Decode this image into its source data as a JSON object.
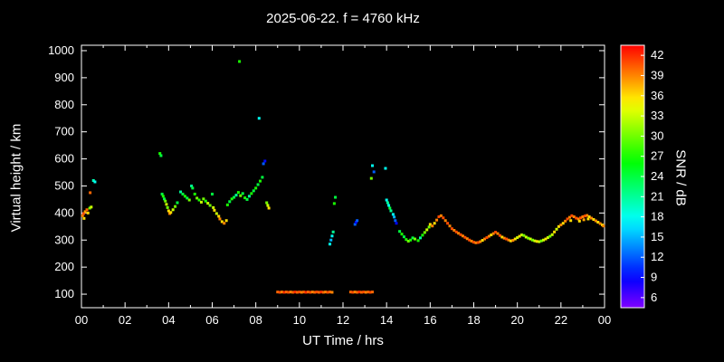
{
  "title": "2025-06-22. f = 4760 kHz",
  "colors": {
    "background": "#000000",
    "foreground": "#ffffff"
  },
  "chart_data": {
    "type": "scatter",
    "title": "2025-06-22. f = 4760 kHz",
    "xlabel": "UT Time / hrs",
    "ylabel": "Virtual height / km",
    "colorbar_label": "SNR / dB",
    "xlim": [
      0,
      24
    ],
    "ylim": [
      50,
      1020
    ],
    "x_tick_labels": [
      "00",
      "02",
      "04",
      "06",
      "08",
      "10",
      "12",
      "14",
      "16",
      "18",
      "20",
      "22",
      "00"
    ],
    "x_tick_values": [
      0,
      2,
      4,
      6,
      8,
      10,
      12,
      14,
      16,
      18,
      20,
      22,
      24
    ],
    "y_ticks": [
      100,
      200,
      300,
      400,
      500,
      600,
      700,
      800,
      900,
      1000
    ],
    "grid": false,
    "colorbar": {
      "min": 4.5,
      "max": 43.5,
      "ticks": [
        6,
        9,
        12,
        15,
        18,
        21,
        24,
        27,
        30,
        33,
        36,
        39,
        42
      ]
    },
    "points_format": [
      "ut_hours",
      "virtual_height_km",
      "snr_db"
    ],
    "points": [
      [
        0.05,
        390,
        39
      ],
      [
        0.1,
        398,
        41
      ],
      [
        0.12,
        380,
        36
      ],
      [
        0.17,
        405,
        38
      ],
      [
        0.25,
        412,
        40
      ],
      [
        0.3,
        400,
        36
      ],
      [
        0.38,
        418,
        30
      ],
      [
        0.4,
        475,
        40
      ],
      [
        0.45,
        422,
        33
      ],
      [
        0.55,
        520,
        20
      ],
      [
        0.62,
        515,
        18
      ],
      [
        3.6,
        620,
        27
      ],
      [
        3.65,
        612,
        24
      ],
      [
        3.7,
        470,
        24
      ],
      [
        3.75,
        462,
        27
      ],
      [
        3.8,
        452,
        24
      ],
      [
        3.85,
        444,
        30
      ],
      [
        3.9,
        432,
        33
      ],
      [
        3.95,
        420,
        30
      ],
      [
        4.0,
        408,
        36
      ],
      [
        4.05,
        398,
        39
      ],
      [
        4.1,
        402,
        36
      ],
      [
        4.2,
        412,
        33
      ],
      [
        4.3,
        424,
        30
      ],
      [
        4.4,
        438,
        24
      ],
      [
        4.55,
        478,
        21
      ],
      [
        4.65,
        470,
        24
      ],
      [
        4.75,
        462,
        27
      ],
      [
        4.85,
        455,
        24
      ],
      [
        4.95,
        448,
        30
      ],
      [
        5.05,
        500,
        21
      ],
      [
        5.1,
        492,
        24
      ],
      [
        5.2,
        470,
        27
      ],
      [
        5.3,
        455,
        30
      ],
      [
        5.4,
        448,
        27
      ],
      [
        5.5,
        440,
        33
      ],
      [
        5.6,
        452,
        30
      ],
      [
        5.7,
        444,
        27
      ],
      [
        5.8,
        436,
        33
      ],
      [
        5.9,
        428,
        30
      ],
      [
        6.0,
        470,
        24
      ],
      [
        6.05,
        420,
        33
      ],
      [
        6.1,
        410,
        36
      ],
      [
        6.2,
        398,
        33
      ],
      [
        6.3,
        388,
        36
      ],
      [
        6.35,
        378,
        39
      ],
      [
        6.45,
        368,
        36
      ],
      [
        6.55,
        362,
        39
      ],
      [
        6.65,
        372,
        36
      ],
      [
        6.7,
        430,
        27
      ],
      [
        6.8,
        442,
        24
      ],
      [
        6.9,
        452,
        27
      ],
      [
        7.0,
        458,
        24
      ],
      [
        7.1,
        466,
        21
      ],
      [
        7.2,
        476,
        27
      ],
      [
        7.25,
        960,
        27
      ],
      [
        7.3,
        464,
        30
      ],
      [
        7.4,
        472,
        24
      ],
      [
        7.5,
        456,
        27
      ],
      [
        7.6,
        450,
        24
      ],
      [
        7.7,
        462,
        21
      ],
      [
        7.8,
        472,
        27
      ],
      [
        7.9,
        482,
        24
      ],
      [
        8.0,
        492,
        27
      ],
      [
        8.1,
        505,
        24
      ],
      [
        8.15,
        750,
        18
      ],
      [
        8.2,
        518,
        27
      ],
      [
        8.3,
        532,
        24
      ],
      [
        8.35,
        582,
        12
      ],
      [
        8.42,
        592,
        9
      ],
      [
        8.5,
        438,
        30
      ],
      [
        8.55,
        428,
        33
      ],
      [
        8.6,
        418,
        36
      ],
      [
        9.0,
        108,
        40
      ],
      [
        9.1,
        107,
        41
      ],
      [
        9.2,
        108,
        39
      ],
      [
        9.3,
        107,
        42
      ],
      [
        9.4,
        108,
        40
      ],
      [
        9.5,
        107,
        41
      ],
      [
        9.6,
        108,
        39
      ],
      [
        9.7,
        107,
        40
      ],
      [
        9.8,
        108,
        42
      ],
      [
        9.9,
        107,
        40
      ],
      [
        10.0,
        108,
        41
      ],
      [
        10.1,
        107,
        39
      ],
      [
        10.2,
        108,
        40
      ],
      [
        10.3,
        107,
        42
      ],
      [
        10.4,
        108,
        40
      ],
      [
        10.5,
        107,
        41
      ],
      [
        10.6,
        108,
        39
      ],
      [
        10.7,
        107,
        40
      ],
      [
        10.8,
        108,
        41
      ],
      [
        10.9,
        107,
        40
      ],
      [
        11.0,
        108,
        42
      ],
      [
        11.1,
        107,
        40
      ],
      [
        11.2,
        108,
        39
      ],
      [
        11.3,
        107,
        41
      ],
      [
        11.4,
        108,
        40
      ],
      [
        11.5,
        107,
        39
      ],
      [
        11.4,
        285,
        18
      ],
      [
        11.45,
        300,
        15
      ],
      [
        11.5,
        315,
        18
      ],
      [
        11.55,
        330,
        21
      ],
      [
        11.6,
        435,
        27
      ],
      [
        11.65,
        458,
        24
      ],
      [
        12.55,
        358,
        12
      ],
      [
        12.6,
        366,
        9
      ],
      [
        12.65,
        372,
        12
      ],
      [
        12.35,
        108,
        40
      ],
      [
        12.45,
        107,
        41
      ],
      [
        12.55,
        108,
        39
      ],
      [
        12.65,
        107,
        40
      ],
      [
        12.75,
        108,
        42
      ],
      [
        12.85,
        107,
        40
      ],
      [
        12.95,
        108,
        41
      ],
      [
        13.05,
        107,
        39
      ],
      [
        13.15,
        108,
        40
      ],
      [
        13.25,
        107,
        41
      ],
      [
        13.35,
        108,
        40
      ],
      [
        13.3,
        528,
        30
      ],
      [
        13.35,
        575,
        18
      ],
      [
        13.42,
        552,
        12
      ],
      [
        13.95,
        565,
        18
      ],
      [
        14.0,
        448,
        18
      ],
      [
        14.05,
        438,
        21
      ],
      [
        14.1,
        428,
        18
      ],
      [
        14.15,
        418,
        24
      ],
      [
        14.2,
        408,
        21
      ],
      [
        14.3,
        395,
        18
      ],
      [
        14.35,
        385,
        15
      ],
      [
        14.4,
        372,
        12
      ],
      [
        14.45,
        362,
        9
      ],
      [
        14.6,
        332,
        24
      ],
      [
        14.7,
        322,
        27
      ],
      [
        14.8,
        312,
        24
      ],
      [
        14.9,
        302,
        27
      ],
      [
        15.0,
        296,
        30
      ],
      [
        15.1,
        300,
        27
      ],
      [
        15.2,
        308,
        24
      ],
      [
        15.3,
        304,
        30
      ],
      [
        15.45,
        298,
        27
      ],
      [
        15.55,
        308,
        21
      ],
      [
        15.65,
        318,
        27
      ],
      [
        15.75,
        328,
        30
      ],
      [
        15.85,
        338,
        33
      ],
      [
        15.95,
        348,
        30
      ],
      [
        16.0,
        358,
        36
      ],
      [
        16.1,
        352,
        39
      ],
      [
        16.2,
        362,
        36
      ],
      [
        16.3,
        374,
        39
      ],
      [
        16.4,
        386,
        41
      ],
      [
        16.5,
        390,
        39
      ],
      [
        16.6,
        382,
        41
      ],
      [
        16.7,
        372,
        39
      ],
      [
        16.8,
        362,
        41
      ],
      [
        16.9,
        352,
        39
      ],
      [
        17.0,
        342,
        41
      ],
      [
        17.1,
        336,
        39
      ],
      [
        17.2,
        330,
        41
      ],
      [
        17.3,
        325,
        39
      ],
      [
        17.4,
        320,
        41
      ],
      [
        17.5,
        315,
        39
      ],
      [
        17.6,
        310,
        41
      ],
      [
        17.7,
        305,
        39
      ],
      [
        17.8,
        300,
        41
      ],
      [
        17.9,
        296,
        39
      ],
      [
        18.0,
        292,
        41
      ],
      [
        18.1,
        290,
        39
      ],
      [
        18.2,
        291,
        41
      ],
      [
        18.3,
        294,
        39
      ],
      [
        18.4,
        299,
        36
      ],
      [
        18.5,
        304,
        39
      ],
      [
        18.6,
        309,
        41
      ],
      [
        18.7,
        314,
        39
      ],
      [
        18.8,
        319,
        36
      ],
      [
        18.9,
        324,
        39
      ],
      [
        19.0,
        329,
        41
      ],
      [
        19.1,
        324,
        39
      ],
      [
        19.2,
        317,
        41
      ],
      [
        19.3,
        311,
        36
      ],
      [
        19.4,
        307,
        39
      ],
      [
        19.5,
        304,
        41
      ],
      [
        19.6,
        300,
        39
      ],
      [
        19.7,
        297,
        36
      ],
      [
        19.8,
        299,
        39
      ],
      [
        19.9,
        304,
        36
      ],
      [
        20.0,
        309,
        33
      ],
      [
        20.1,
        314,
        36
      ],
      [
        20.2,
        319,
        33
      ],
      [
        20.3,
        317,
        30
      ],
      [
        20.4,
        311,
        33
      ],
      [
        20.5,
        307,
        30
      ],
      [
        20.6,
        304,
        33
      ],
      [
        20.7,
        300,
        30
      ],
      [
        20.8,
        297,
        33
      ],
      [
        20.9,
        295,
        36
      ],
      [
        21.0,
        294,
        33
      ],
      [
        21.1,
        297,
        30
      ],
      [
        21.2,
        300,
        33
      ],
      [
        21.3,
        304,
        36
      ],
      [
        21.4,
        309,
        33
      ],
      [
        21.5,
        314,
        30
      ],
      [
        21.6,
        320,
        33
      ],
      [
        21.7,
        330,
        36
      ],
      [
        21.8,
        340,
        33
      ],
      [
        21.9,
        350,
        36
      ],
      [
        22.0,
        356,
        39
      ],
      [
        22.1,
        362,
        36
      ],
      [
        22.2,
        370,
        39
      ],
      [
        22.3,
        378,
        41
      ],
      [
        22.4,
        384,
        39
      ],
      [
        22.45,
        372,
        36
      ],
      [
        22.5,
        390,
        41
      ],
      [
        22.6,
        386,
        39
      ],
      [
        22.7,
        381,
        41
      ],
      [
        22.8,
        378,
        39
      ],
      [
        22.85,
        370,
        36
      ],
      [
        22.9,
        382,
        41
      ],
      [
        23.0,
        386,
        39
      ],
      [
        23.05,
        375,
        38
      ],
      [
        23.1,
        389,
        41
      ],
      [
        23.2,
        391,
        39
      ],
      [
        23.25,
        378,
        36
      ],
      [
        23.3,
        386,
        36
      ],
      [
        23.4,
        381,
        39
      ],
      [
        23.5,
        376,
        36
      ],
      [
        23.6,
        371,
        39
      ],
      [
        23.7,
        366,
        36
      ],
      [
        23.8,
        361,
        39
      ],
      [
        23.9,
        356,
        36
      ],
      [
        23.95,
        352,
        39
      ]
    ]
  }
}
